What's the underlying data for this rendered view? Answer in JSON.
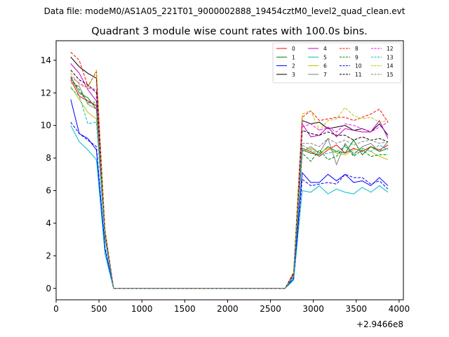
{
  "chart_data": {
    "type": "line",
    "suptitle": "Data file: modeM0/AS1A05_221T01_9000002888_19454cztM0_level2_quad_clean.evt",
    "title": "Quadrant 3 module wise count rates with 100.0s bins.",
    "xlabel": "",
    "ylabel": "",
    "x_offset_label": "+2.9466e8",
    "xlim": [
      0,
      4050
    ],
    "ylim": [
      -0.7,
      15.2
    ],
    "xticks": [
      0,
      500,
      1000,
      1500,
      2000,
      2500,
      3000,
      3500,
      4000
    ],
    "yticks": [
      0,
      2,
      4,
      6,
      8,
      10,
      12,
      14
    ],
    "grid": false,
    "legend_position": "top-right",
    "legend_columns": 4,
    "x": [
      170,
      270,
      370,
      470,
      570,
      670,
      770,
      870,
      970,
      1070,
      1170,
      1270,
      1370,
      1470,
      1570,
      1670,
      1770,
      1870,
      1970,
      2070,
      2170,
      2270,
      2370,
      2470,
      2570,
      2670,
      2770,
      2870,
      2970,
      3070,
      3170,
      3270,
      3370,
      3470,
      3570,
      3670,
      3770,
      3870
    ],
    "series": [
      {
        "name": "0",
        "color": "#ff0000",
        "dash": false,
        "values": [
          12.8,
          11.8,
          11.5,
          11.2,
          3.3,
          0,
          0,
          0,
          0,
          0,
          0,
          0,
          0,
          0,
          0,
          0,
          0,
          0,
          0,
          0,
          0,
          0,
          0,
          0,
          0,
          0,
          0.8,
          8.6,
          8.4,
          8.1,
          8.5,
          8.8,
          8.3,
          8.6,
          8.4,
          8.7,
          8.5,
          8.8
        ]
      },
      {
        "name": "1",
        "color": "#008000",
        "dash": false,
        "values": [
          13.0,
          12.0,
          11.7,
          11.0,
          3.2,
          0,
          0,
          0,
          0,
          0,
          0,
          0,
          0,
          0,
          0,
          0,
          0,
          0,
          0,
          0,
          0,
          0,
          0,
          0,
          0,
          0,
          0.8,
          8.5,
          8.3,
          8.2,
          8.7,
          8.4,
          8.3,
          9.1,
          8.2,
          8.7,
          8.4,
          8.6
        ]
      },
      {
        "name": "2",
        "color": "#0000ff",
        "dash": false,
        "values": [
          11.6,
          9.5,
          9.2,
          8.5,
          2.4,
          0,
          0,
          0,
          0,
          0,
          0,
          0,
          0,
          0,
          0,
          0,
          0,
          0,
          0,
          0,
          0,
          0,
          0,
          0,
          0,
          0,
          0.6,
          7.1,
          6.5,
          6.5,
          7.0,
          6.6,
          7.0,
          6.5,
          6.6,
          6.3,
          6.8,
          6.3
        ]
      },
      {
        "name": "3",
        "color": "#000000",
        "dash": false,
        "values": [
          14.2,
          13.6,
          13.2,
          12.9,
          3.5,
          0,
          0,
          0,
          0,
          0,
          0,
          0,
          0,
          0,
          0,
          0,
          0,
          0,
          0,
          0,
          0,
          0,
          0,
          0,
          0,
          0,
          0.9,
          10.3,
          10.1,
          10.2,
          9.8,
          9.9,
          10.0,
          9.7,
          9.8,
          9.6,
          10.1,
          9.4
        ]
      },
      {
        "name": "4",
        "color": "#bf00bf",
        "dash": false,
        "values": [
          13.8,
          13.2,
          12.2,
          11.5,
          3.4,
          0,
          0,
          0,
          0,
          0,
          0,
          0,
          0,
          0,
          0,
          0,
          0,
          0,
          0,
          0,
          0,
          0,
          0,
          0,
          0,
          0,
          0.9,
          10.1,
          9.3,
          9.4,
          9.9,
          9.3,
          9.8,
          9.7,
          9.6,
          9.6,
          10.3,
          9.2
        ]
      },
      {
        "name": "5",
        "color": "#00bfbf",
        "dash": false,
        "values": [
          10.0,
          9.0,
          8.5,
          7.9,
          2.1,
          0,
          0,
          0,
          0,
          0,
          0,
          0,
          0,
          0,
          0,
          0,
          0,
          0,
          0,
          0,
          0,
          0,
          0,
          0,
          0,
          0,
          0.5,
          6.0,
          5.9,
          6.3,
          5.8,
          6.1,
          5.9,
          5.8,
          6.2,
          5.9,
          6.3,
          5.9
        ]
      },
      {
        "name": "6",
        "color": "#bfbf00",
        "dash": false,
        "values": [
          12.4,
          11.6,
          10.8,
          10.4,
          3.1,
          0,
          0,
          0,
          0,
          0,
          0,
          0,
          0,
          0,
          0,
          0,
          0,
          0,
          0,
          0,
          0,
          0,
          0,
          0,
          0,
          0,
          0.8,
          8.4,
          8.6,
          8.3,
          8.6,
          8.3,
          8.2,
          8.5,
          8.6,
          8.4,
          8.1,
          7.9
        ]
      },
      {
        "name": "7",
        "color": "#808080",
        "dash": false,
        "values": [
          12.6,
          12.4,
          11.3,
          11.0,
          3.3,
          0,
          0,
          0,
          0,
          0,
          0,
          0,
          0,
          0,
          0,
          0,
          0,
          0,
          0,
          0,
          0,
          0,
          0,
          0,
          0,
          0,
          0.8,
          8.4,
          8.7,
          8.3,
          9.2,
          7.6,
          8.9,
          8.2,
          8.7,
          8.9,
          8.4,
          9.0
        ]
      },
      {
        "name": "8",
        "color": "#ff0000",
        "dash": true,
        "values": [
          14.5,
          14.0,
          12.4,
          13.3,
          3.6,
          0,
          0,
          0,
          0,
          0,
          0,
          0,
          0,
          0,
          0,
          0,
          0,
          0,
          0,
          0,
          0,
          0,
          0,
          0,
          0,
          0,
          1.0,
          10.5,
          10.9,
          10.3,
          10.4,
          10.5,
          10.5,
          10.3,
          10.5,
          10.7,
          11.0,
          10.2
        ]
      },
      {
        "name": "9",
        "color": "#008000",
        "dash": true,
        "values": [
          12.9,
          12.2,
          11.4,
          11.3,
          3.2,
          0,
          0,
          0,
          0,
          0,
          0,
          0,
          0,
          0,
          0,
          0,
          0,
          0,
          0,
          0,
          0,
          0,
          0,
          0,
          0,
          0,
          0.8,
          8.3,
          7.8,
          8.5,
          7.9,
          8.1,
          8.8,
          8.1,
          8.5,
          8.1,
          8.2,
          8.2
        ]
      },
      {
        "name": "10",
        "color": "#0000ff",
        "dash": true,
        "values": [
          10.2,
          9.5,
          9.1,
          8.7,
          2.5,
          0,
          0,
          0,
          0,
          0,
          0,
          0,
          0,
          0,
          0,
          0,
          0,
          0,
          0,
          0,
          0,
          0,
          0,
          0,
          0,
          0,
          0.6,
          6.7,
          6.3,
          6.4,
          6.5,
          6.4,
          7.0,
          6.8,
          6.8,
          6.4,
          6.6,
          6.1
        ]
      },
      {
        "name": "11",
        "color": "#000000",
        "dash": true,
        "values": [
          13.4,
          12.8,
          12.5,
          12.0,
          3.4,
          0,
          0,
          0,
          0,
          0,
          0,
          0,
          0,
          0,
          0,
          0,
          0,
          0,
          0,
          0,
          0,
          0,
          0,
          0,
          0,
          0,
          0.9,
          9.7,
          9.5,
          9.4,
          9.6,
          9.4,
          9.4,
          9.1,
          9.3,
          9.1,
          9.2,
          9.0
        ]
      },
      {
        "name": "12",
        "color": "#ff00ff",
        "dash": true,
        "values": [
          13.0,
          12.6,
          12.3,
          12.2,
          3.4,
          0,
          0,
          0,
          0,
          0,
          0,
          0,
          0,
          0,
          0,
          0,
          0,
          0,
          0,
          0,
          0,
          0,
          0,
          0,
          0,
          0,
          0.9,
          9.9,
          10.1,
          9.7,
          9.9,
          9.6,
          10.1,
          10.0,
          9.8,
          9.6,
          9.9,
          10.2
        ]
      },
      {
        "name": "13",
        "color": "#00bfbf",
        "dash": true,
        "values": [
          12.3,
          11.8,
          10.1,
          10.2,
          3.0,
          0,
          0,
          0,
          0,
          0,
          0,
          0,
          0,
          0,
          0,
          0,
          0,
          0,
          0,
          0,
          0,
          0,
          0,
          0,
          0,
          0,
          0.7,
          8.8,
          8.5,
          8.2,
          8.3,
          8.4,
          8.7,
          8.3,
          8.6,
          8.4,
          8.8,
          8.5
        ]
      },
      {
        "name": "14",
        "color": "#bfbf00",
        "dash": true,
        "values": [
          13.2,
          12.5,
          12.3,
          13.4,
          3.5,
          0,
          0,
          0,
          0,
          0,
          0,
          0,
          0,
          0,
          0,
          0,
          0,
          0,
          0,
          0,
          0,
          0,
          0,
          0,
          0,
          0,
          1.0,
          10.7,
          10.9,
          9.7,
          10.3,
          10.4,
          11.1,
          10.6,
          10.4,
          10.5,
          10.2,
          10.3
        ]
      },
      {
        "name": "15",
        "color": "#808080",
        "dash": true,
        "values": [
          12.9,
          12.0,
          11.5,
          11.4,
          3.3,
          0,
          0,
          0,
          0,
          0,
          0,
          0,
          0,
          0,
          0,
          0,
          0,
          0,
          0,
          0,
          0,
          0,
          0,
          0,
          0,
          0,
          0.8,
          8.9,
          8.9,
          8.7,
          9.2,
          8.9,
          9.1,
          8.8,
          9.0,
          9.1,
          8.9,
          9.0
        ]
      }
    ]
  }
}
